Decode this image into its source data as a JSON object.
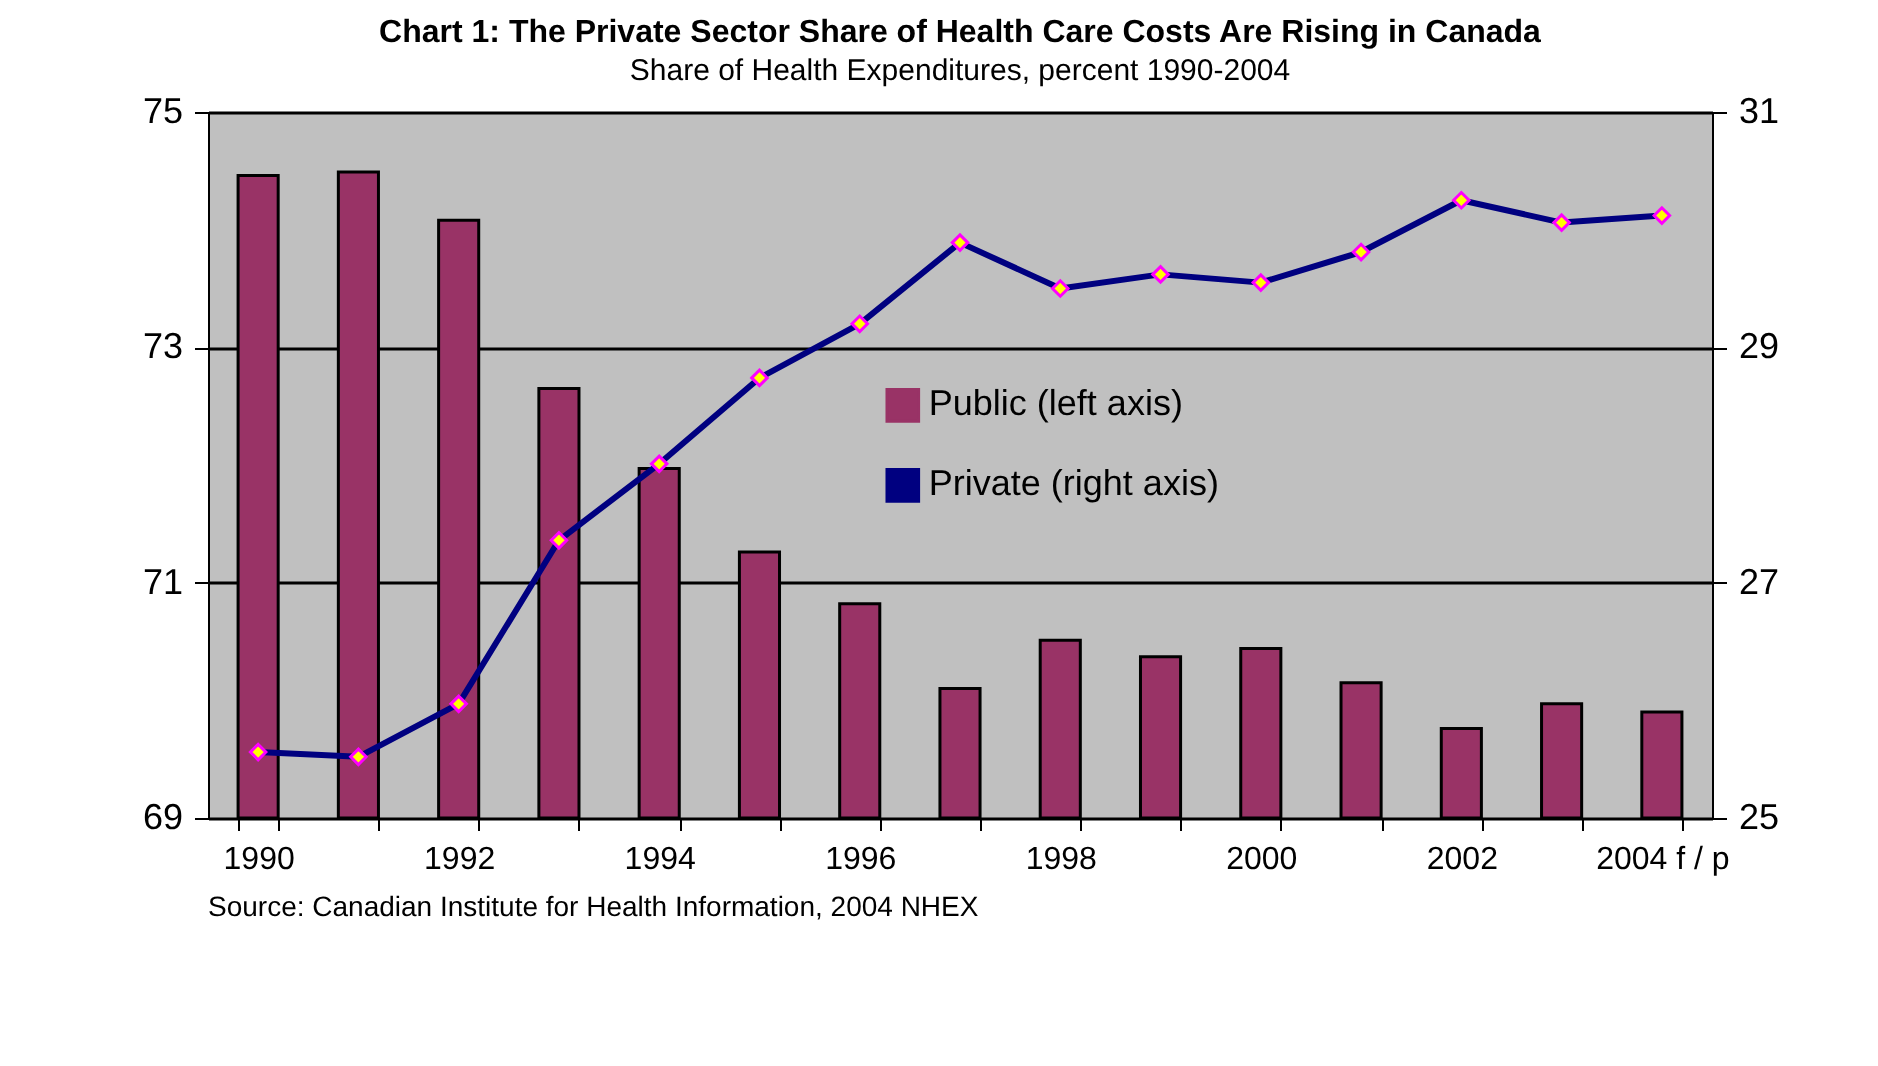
{
  "chart_data": {
    "type": "bar",
    "title": "Chart 1:  The Private Sector Share of Health Care Costs Are Rising in Canada",
    "subtitle": "Share of Health Expenditures, percent 1990-2004",
    "categories": [
      "1990",
      null,
      "1992",
      null,
      "1994",
      null,
      "1996",
      null,
      "1998",
      null,
      "2000",
      null,
      "2002",
      null,
      "2004 f / p"
    ],
    "series": [
      {
        "name": "Public (left axis)",
        "color": "#993366",
        "values": [
          74.46,
          74.49,
          74.08,
          72.65,
          71.97,
          71.26,
          70.82,
          70.1,
          70.51,
          70.37,
          70.44,
          70.15,
          69.76,
          69.97,
          69.9
        ]
      },
      {
        "name": "Private (right axis)",
        "type": "line",
        "axis": "y2",
        "color": "#000080",
        "marker": "diamond",
        "values": [
          25.56,
          25.52,
          25.97,
          27.36,
          28.01,
          28.74,
          29.2,
          29.89,
          29.5,
          29.62,
          29.55,
          29.81,
          30.25,
          30.06,
          30.12
        ]
      }
    ],
    "ylim": [
      69,
      75
    ],
    "yticks": [
      69,
      71,
      73,
      75
    ],
    "y2lim": [
      25,
      31
    ],
    "y2ticks": [
      25,
      27,
      29,
      31
    ],
    "grid": "y",
    "legend": "center",
    "annotations": [
      "Source: Canadian Institute for Health Information, 2004 NHEX"
    ]
  }
}
